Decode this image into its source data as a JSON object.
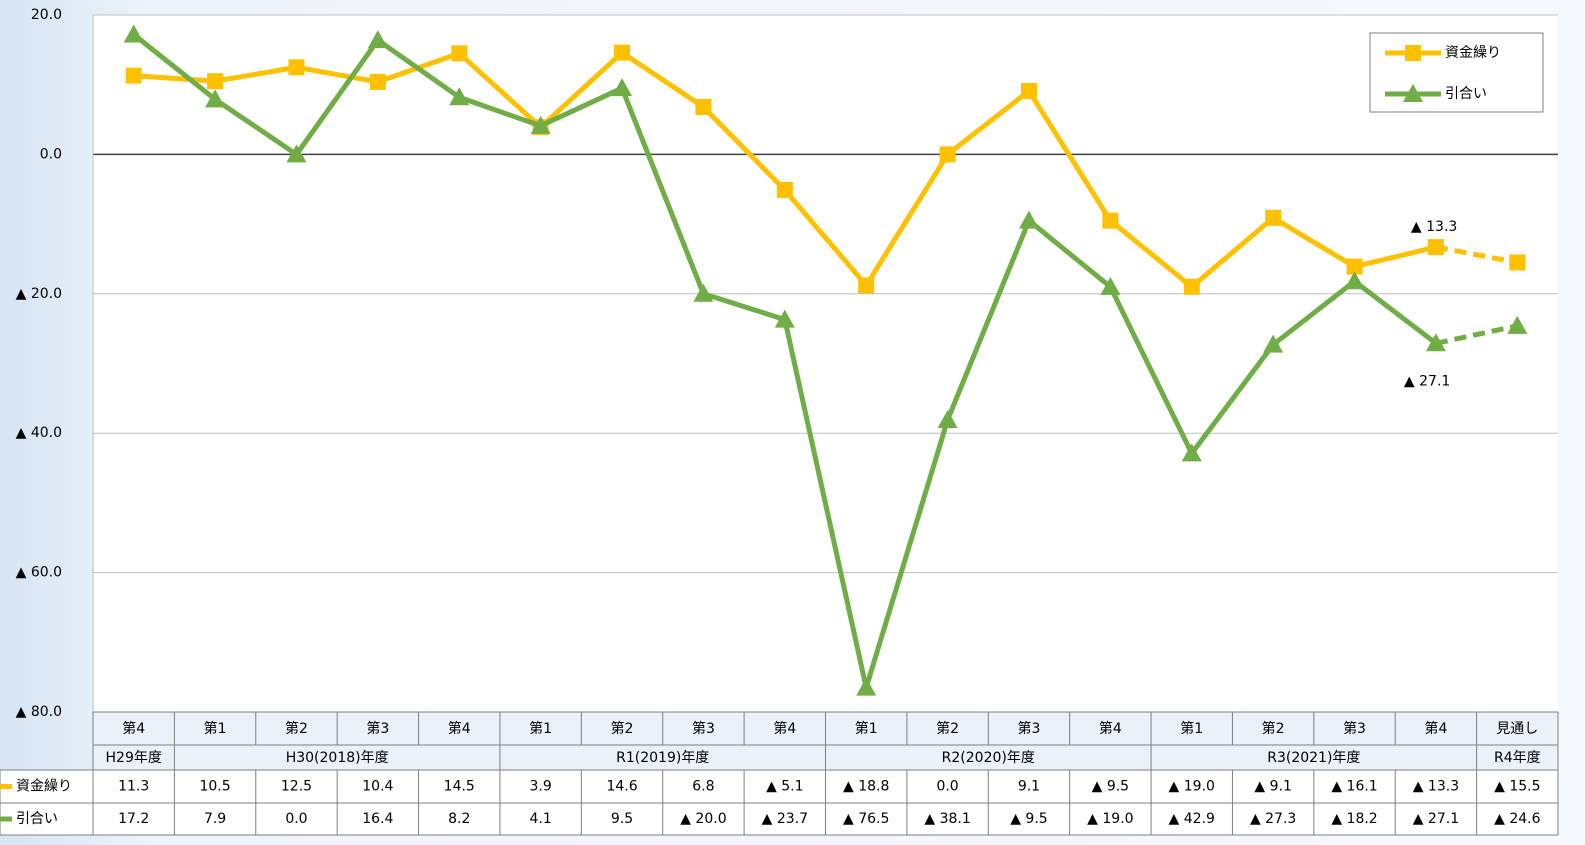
{
  "chart_data": {
    "type": "line",
    "groups": [
      {
        "label": "H29年度",
        "quarters": [
          "第4"
        ]
      },
      {
        "label": "H30(2018)年度",
        "quarters": [
          "第1",
          "第2",
          "第3",
          "第4"
        ]
      },
      {
        "label": "R1(2019)年度",
        "quarters": [
          "第1",
          "第2",
          "第3",
          "第4"
        ]
      },
      {
        "label": "R2(2020)年度",
        "quarters": [
          "第1",
          "第2",
          "第3",
          "第4"
        ]
      },
      {
        "label": "R3(2021)年度",
        "quarters": [
          "第1",
          "第2",
          "第3",
          "第4"
        ]
      },
      {
        "label": "R4年度",
        "quarters": [
          "見通し"
        ]
      }
    ],
    "series": [
      {
        "name": "資金繰り",
        "color": "#ffc000",
        "marker": "square",
        "values": [
          11.3,
          10.5,
          12.5,
          10.4,
          14.5,
          3.9,
          14.6,
          6.8,
          -5.1,
          -18.8,
          0.0,
          9.1,
          -9.5,
          -19.0,
          -9.1,
          -16.1,
          -13.3,
          -15.5
        ],
        "value_labels": [
          "11.3",
          "10.5",
          "12.5",
          "10.4",
          "14.5",
          "3.9",
          "14.6",
          "6.8",
          "▲ 5.1",
          "▲ 18.8",
          "0.0",
          "9.1",
          "▲ 9.5",
          "▲ 19.0",
          "▲ 9.1",
          "▲ 16.1",
          "▲ 13.3",
          "▲ 15.5"
        ]
      },
      {
        "name": "引合い",
        "color": "#70ad47",
        "marker": "triangle",
        "values": [
          17.2,
          7.9,
          0.0,
          16.4,
          8.2,
          4.1,
          9.5,
          -20.0,
          -23.7,
          -76.5,
          -38.1,
          -9.5,
          -19.0,
          -42.9,
          -27.3,
          -18.2,
          -27.1,
          -24.6
        ],
        "value_labels": [
          "17.2",
          "7.9",
          "0.0",
          "16.4",
          "8.2",
          "4.1",
          "9.5",
          "▲ 20.0",
          "▲ 23.7",
          "▲ 76.5",
          "▲ 38.1",
          "▲ 9.5",
          "▲ 19.0",
          "▲ 42.9",
          "▲ 27.3",
          "▲ 18.2",
          "▲ 27.1",
          "▲ 24.6"
        ]
      }
    ],
    "ylim": [
      -80,
      20
    ],
    "yticks": [
      {
        "value": -80,
        "label": "▲ 80.0"
      },
      {
        "value": -60,
        "label": "▲ 60.0"
      },
      {
        "value": -40,
        "label": "▲ 40.0"
      },
      {
        "value": -20,
        "label": "▲ 20.0"
      },
      {
        "value": 0,
        "label": "0.0"
      },
      {
        "value": 20,
        "label": "20.0"
      }
    ],
    "grid": true,
    "dashed_last_segment": true,
    "legend": "top-right"
  }
}
